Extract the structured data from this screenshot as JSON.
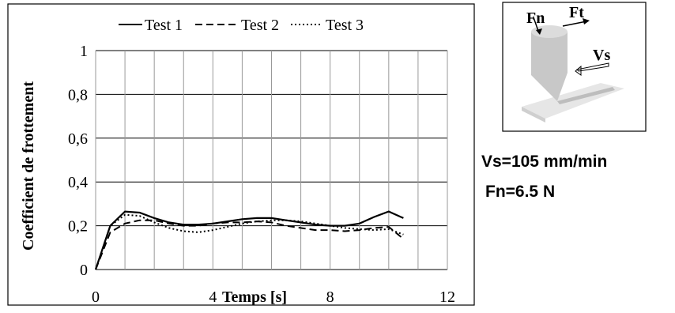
{
  "chart_data": {
    "type": "line",
    "y_label": "Coefficient de frottement",
    "x_label": "Temps [s]",
    "x": [
      0,
      0.5,
      1,
      1.5,
      2,
      2.5,
      3,
      3.5,
      4,
      4.5,
      5,
      5.5,
      6,
      6.5,
      7,
      7.5,
      8,
      8.5,
      9,
      9.5,
      10,
      10.5
    ],
    "series": [
      {
        "name": "Test 1",
        "color": "#000000",
        "dash": "solid",
        "values": [
          0,
          0.2,
          0.265,
          0.26,
          0.235,
          0.215,
          0.205,
          0.205,
          0.21,
          0.22,
          0.23,
          0.235,
          0.235,
          0.225,
          0.215,
          0.205,
          0.2,
          0.2,
          0.21,
          0.24,
          0.265,
          0.235
        ]
      },
      {
        "name": "Test 2",
        "color": "#000000",
        "dash": "dashed",
        "values": [
          0,
          0.17,
          0.21,
          0.225,
          0.225,
          0.21,
          0.2,
          0.2,
          0.21,
          0.215,
          0.215,
          0.22,
          0.215,
          0.2,
          0.19,
          0.18,
          0.18,
          0.175,
          0.18,
          0.19,
          0.195,
          0.14
        ]
      },
      {
        "name": "Test 3",
        "color": "#000000",
        "dash": "dotted",
        "values": [
          0,
          0.2,
          0.25,
          0.245,
          0.215,
          0.19,
          0.175,
          0.17,
          0.18,
          0.195,
          0.21,
          0.22,
          0.225,
          0.225,
          0.22,
          0.21,
          0.2,
          0.19,
          0.185,
          0.18,
          0.185,
          0.16
        ]
      }
    ],
    "xlim": [
      0,
      12
    ],
    "xticks": [
      0,
      4,
      8,
      12
    ],
    "x_minor_grid": [
      1,
      2,
      3,
      5,
      6,
      7,
      9,
      10,
      11
    ],
    "ylim": [
      0,
      1
    ],
    "yticks": [
      0,
      {
        "value": 0.2,
        "label": "0,2"
      },
      {
        "value": 0.4,
        "label": "0,4"
      },
      {
        "value": 0.6,
        "label": "0,6"
      },
      {
        "value": 0.8,
        "label": "0,8"
      },
      1
    ],
    "grid": true,
    "legend": "top"
  },
  "diagram": {
    "fn": "Fn",
    "ft": "Ft",
    "vs": "Vs"
  },
  "notes": [
    "Vs=105 mm/min",
    "Fn=6.5 N"
  ]
}
